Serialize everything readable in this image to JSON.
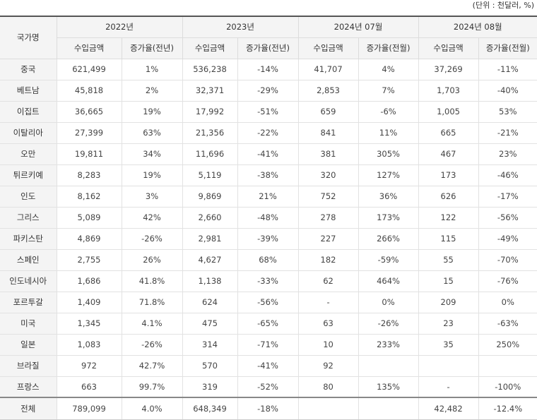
{
  "unit": "(단위 : 천달러, %)",
  "header": {
    "country": "국가명",
    "periods": [
      "2022년",
      "2023년",
      "2024년 07월",
      "2024년 08월"
    ],
    "subheaders": [
      "수입금액",
      "증가율(전년)",
      "수입금액",
      "증가율(전년)",
      "수입금액",
      "증가율(전월)",
      "수입금액",
      "증가율(전월)"
    ]
  },
  "rows": [
    {
      "country": "중국",
      "cells": [
        "621,499",
        "1%",
        "536,238",
        "-14%",
        "41,707",
        "4%",
        "37,269",
        "-11%"
      ]
    },
    {
      "country": "베트남",
      "cells": [
        "45,818",
        "2%",
        "32,371",
        "-29%",
        "2,853",
        "7%",
        "1,703",
        "-40%"
      ]
    },
    {
      "country": "이집트",
      "cells": [
        "36,665",
        "19%",
        "17,992",
        "-51%",
        "659",
        "-6%",
        "1,005",
        "53%"
      ]
    },
    {
      "country": "이탈리아",
      "cells": [
        "27,399",
        "63%",
        "21,356",
        "-22%",
        "841",
        "11%",
        "665",
        "-21%"
      ]
    },
    {
      "country": "오만",
      "cells": [
        "19,811",
        "34%",
        "11,696",
        "-41%",
        "381",
        "305%",
        "467",
        "23%"
      ]
    },
    {
      "country": "튀르키예",
      "cells": [
        "8,283",
        "19%",
        "5,119",
        "-38%",
        "320",
        "127%",
        "173",
        "-46%"
      ]
    },
    {
      "country": "인도",
      "cells": [
        "8,162",
        "3%",
        "9,869",
        "21%",
        "752",
        "36%",
        "626",
        "-17%"
      ]
    },
    {
      "country": "그리스",
      "cells": [
        "5,089",
        "42%",
        "2,660",
        "-48%",
        "278",
        "173%",
        "122",
        "-56%"
      ]
    },
    {
      "country": "파키스탄",
      "cells": [
        "4,869",
        "-26%",
        "2,981",
        "-39%",
        "227",
        "266%",
        "115",
        "-49%"
      ]
    },
    {
      "country": "스페인",
      "cells": [
        "2,755",
        "26%",
        "4,627",
        "68%",
        "182",
        "-59%",
        "55",
        "-70%"
      ]
    },
    {
      "country": "인도네시아",
      "cells": [
        "1,686",
        "41.8%",
        "1,138",
        "-33%",
        "62",
        "464%",
        "15",
        "-76%"
      ]
    },
    {
      "country": "포르투갈",
      "cells": [
        "1,409",
        "71.8%",
        "624",
        "-56%",
        "-",
        "0%",
        "209",
        "0%"
      ]
    },
    {
      "country": "미국",
      "cells": [
        "1,345",
        "4.1%",
        "475",
        "-65%",
        "63",
        "-26%",
        "23",
        "-63%"
      ]
    },
    {
      "country": "일본",
      "cells": [
        "1,083",
        "-26%",
        "314",
        "-71%",
        "10",
        "233%",
        "35",
        "250%"
      ]
    },
    {
      "country": "브라질",
      "cells": [
        "972",
        "42.7%",
        "570",
        "-41%",
        "92",
        "",
        "",
        ""
      ]
    },
    {
      "country": "프랑스",
      "cells": [
        "663",
        "99.7%",
        "319",
        "-52%",
        "80",
        "135%",
        "-",
        "-100%"
      ]
    }
  ],
  "total": {
    "country": "전체",
    "cells": [
      "789,099",
      "4.0%",
      "648,349",
      "-18%",
      "",
      "",
      "42,482",
      "-12.4%"
    ]
  }
}
